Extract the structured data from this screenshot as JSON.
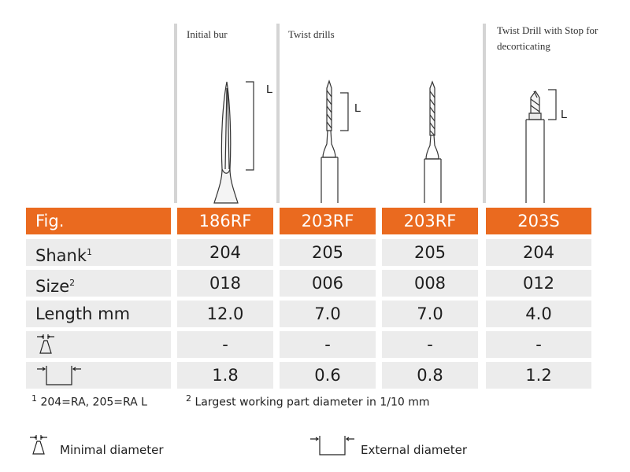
{
  "columns": [
    {
      "header": "Initial bur",
      "fig": "186RF",
      "shank": "204",
      "size": "018",
      "length": "12.0",
      "min_diameter": "-",
      "ext_diameter": "1.8"
    },
    {
      "header": "Twist drills",
      "fig": "203RF",
      "shank": "205",
      "size": "006",
      "length": "7.0",
      "min_diameter": "-",
      "ext_diameter": "0.6"
    },
    {
      "header": "",
      "fig": "203RF",
      "shank": "205",
      "size": "008",
      "length": "7.0",
      "min_diameter": "-",
      "ext_diameter": "0.8"
    },
    {
      "header": "Twist Drill with Stop for decorticating",
      "fig": "203S",
      "shank": "204",
      "size": "012",
      "length": "4.0",
      "min_diameter": "-",
      "ext_diameter": "1.2"
    }
  ],
  "rows": {
    "fig": "Fig.",
    "shank": "Shank",
    "shank_sup": "1",
    "size": "Size",
    "size_sup": "2",
    "length": "Length mm"
  },
  "dimension_label": "L",
  "footnotes": {
    "note1_sup": "1",
    "note1": "204=RA, 205=RA L",
    "note2_sup": "2",
    "note2": "Largest working part diameter in 1/10 mm"
  },
  "legend": {
    "min": "Minimal diameter",
    "ext": "External diameter"
  },
  "colors": {
    "accent": "#ea6a1f",
    "row_bg": "#ececec",
    "separator": "#d4d4d4"
  },
  "icons": [
    "minimal-diameter-icon",
    "external-diameter-icon"
  ]
}
